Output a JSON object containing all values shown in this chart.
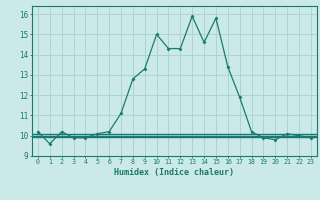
{
  "title": "",
  "xlabel": "Humidex (Indice chaleur)",
  "bg_color": "#cce9e9",
  "grid_color": "#aad4d4",
  "line_color": "#1a7a6e",
  "xlim": [
    -0.5,
    23.5
  ],
  "ylim": [
    9,
    16.4
  ],
  "yticks": [
    9,
    10,
    11,
    12,
    13,
    14,
    15,
    16
  ],
  "xticks": [
    0,
    1,
    2,
    3,
    4,
    5,
    6,
    7,
    8,
    9,
    10,
    11,
    12,
    13,
    14,
    15,
    16,
    17,
    18,
    19,
    20,
    21,
    22,
    23
  ],
  "main_x": [
    0,
    1,
    2,
    3,
    4,
    5,
    6,
    7,
    8,
    9,
    10,
    11,
    12,
    13,
    14,
    15,
    16,
    17,
    18,
    19,
    20,
    21,
    22,
    23
  ],
  "main_y": [
    10.2,
    9.6,
    10.2,
    9.9,
    9.9,
    10.1,
    10.2,
    11.1,
    12.8,
    13.3,
    15.0,
    14.3,
    14.3,
    15.9,
    14.6,
    15.8,
    13.4,
    11.9,
    10.2,
    9.9,
    9.8,
    10.1,
    10.0,
    9.9
  ],
  "ref1_y": 10.08,
  "ref2_y": 10.0,
  "ref3_y": 9.93
}
